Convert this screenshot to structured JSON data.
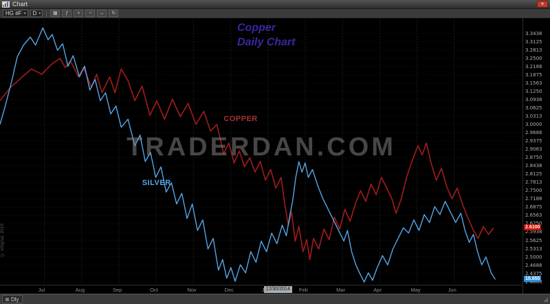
{
  "window": {
    "title": "Chart"
  },
  "titlebar": {
    "close_glyph": "×"
  },
  "toolbar": {
    "symbol": "HG #F",
    "interval": "D",
    "dropdown_glyph": "▾",
    "icons": [
      {
        "name": "chart-type",
        "glyph": "▦"
      },
      {
        "name": "indicators",
        "glyph": "ƒ"
      },
      {
        "name": "crosshair",
        "glyph": "+"
      },
      {
        "name": "zoom-out",
        "glyph": "−"
      },
      {
        "name": "pan",
        "glyph": "↔"
      },
      {
        "name": "refresh",
        "glyph": "↻"
      }
    ]
  },
  "chart_data": {
    "type": "line",
    "title": "Copper Daily Chart",
    "annotation": {
      "line1": "Copper",
      "line2": "Daily Chart",
      "color": "#3a26a0"
    },
    "watermark": "TRADERDAN.COM",
    "grid": "dotted",
    "legend_position": "inline-labels",
    "x_tick_labels": [
      "Jul",
      "Aug",
      "Sep",
      "Oct",
      "Nov",
      "Dec",
      "Jan",
      "Feb",
      "Mar",
      "Apr",
      "May",
      "Jun"
    ],
    "x_tick_frac_start": 0.085,
    "x_tick_frac_step": 0.0713,
    "y_tick_labels": [
      "3.3438",
      "3.3125",
      "3.2813",
      "3.2500",
      "3.2188",
      "3.1875",
      "3.1563",
      "3.1250",
      "3.0938",
      "3.0625",
      "3.0313",
      "3.0000",
      "2.9688",
      "2.9375",
      "2.9063",
      "2.8750",
      "2.8438",
      "2.8125",
      "2.7813",
      "2.7500",
      "2.7188",
      "2.6875",
      "2.6563",
      "2.6250",
      "2.5938",
      "2.5625",
      "2.5313",
      "2.5000",
      "2.4688",
      "2.4375",
      "2.4063"
    ],
    "y_tick_value_start": 3.34375,
    "y_tick_step": 0.03125,
    "ylim": [
      2.395,
      3.4
    ],
    "x_axis_tag": {
      "text": "12/30/2014",
      "x_frac": 0.505
    },
    "series": [
      {
        "name": "COPPER",
        "color": "#9b1b1b",
        "label_color": "#a83232",
        "label_x_frac": 0.428,
        "label_price": 3.02,
        "last_price": 2.61,
        "last_label": "2.6100",
        "last_label_bg": "#c51100",
        "points": [
          [
            0.0,
            3.09
          ],
          [
            0.02,
            3.14
          ],
          [
            0.04,
            3.175
          ],
          [
            0.06,
            3.21
          ],
          [
            0.08,
            3.19
          ],
          [
            0.1,
            3.23
          ],
          [
            0.115,
            3.25
          ],
          [
            0.125,
            3.215
          ],
          [
            0.135,
            3.24
          ],
          [
            0.15,
            3.18
          ],
          [
            0.16,
            3.215
          ],
          [
            0.175,
            3.14
          ],
          [
            0.185,
            3.19
          ],
          [
            0.195,
            3.12
          ],
          [
            0.21,
            3.18
          ],
          [
            0.22,
            3.12
          ],
          [
            0.232,
            3.21
          ],
          [
            0.245,
            3.165
          ],
          [
            0.258,
            3.09
          ],
          [
            0.272,
            3.145
          ],
          [
            0.287,
            3.035
          ],
          [
            0.3,
            3.09
          ],
          [
            0.315,
            3.02
          ],
          [
            0.33,
            3.095
          ],
          [
            0.345,
            3.03
          ],
          [
            0.36,
            3.08
          ],
          [
            0.375,
            3.0
          ],
          [
            0.39,
            3.05
          ],
          [
            0.403,
            2.975
          ],
          [
            0.415,
            3.0
          ],
          [
            0.428,
            2.89
          ],
          [
            0.438,
            2.93
          ],
          [
            0.448,
            2.855
          ],
          [
            0.458,
            2.9
          ],
          [
            0.468,
            2.84
          ],
          [
            0.478,
            2.875
          ],
          [
            0.488,
            2.82
          ],
          [
            0.498,
            2.86
          ],
          [
            0.508,
            2.79
          ],
          [
            0.518,
            2.83
          ],
          [
            0.528,
            2.76
          ],
          [
            0.538,
            2.8
          ],
          [
            0.545,
            2.7
          ],
          [
            0.552,
            2.62
          ],
          [
            0.558,
            2.67
          ],
          [
            0.565,
            2.56
          ],
          [
            0.572,
            2.615
          ],
          [
            0.58,
            2.52
          ],
          [
            0.587,
            2.565
          ],
          [
            0.593,
            2.49
          ],
          [
            0.6,
            2.57
          ],
          [
            0.61,
            2.53
          ],
          [
            0.62,
            2.605
          ],
          [
            0.63,
            2.565
          ],
          [
            0.64,
            2.65
          ],
          [
            0.65,
            2.605
          ],
          [
            0.66,
            2.68
          ],
          [
            0.67,
            2.635
          ],
          [
            0.68,
            2.7
          ],
          [
            0.69,
            2.75
          ],
          [
            0.7,
            2.71
          ],
          [
            0.71,
            2.775
          ],
          [
            0.72,
            2.735
          ],
          [
            0.73,
            2.8
          ],
          [
            0.74,
            2.76
          ],
          [
            0.75,
            2.72
          ],
          [
            0.758,
            2.665
          ],
          [
            0.768,
            2.72
          ],
          [
            0.778,
            2.8
          ],
          [
            0.79,
            2.87
          ],
          [
            0.8,
            2.92
          ],
          [
            0.808,
            2.885
          ],
          [
            0.816,
            2.93
          ],
          [
            0.825,
            2.855
          ],
          [
            0.835,
            2.79
          ],
          [
            0.845,
            2.835
          ],
          [
            0.855,
            2.765
          ],
          [
            0.865,
            2.72
          ],
          [
            0.875,
            2.76
          ],
          [
            0.885,
            2.7
          ],
          [
            0.895,
            2.65
          ],
          [
            0.905,
            2.605
          ],
          [
            0.915,
            2.57
          ],
          [
            0.925,
            2.615
          ],
          [
            0.935,
            2.585
          ],
          [
            0.945,
            2.61
          ]
        ]
      },
      {
        "name": "SILVER",
        "color": "#55a8ea",
        "label_color": "#55a8ea",
        "label_x_frac": 0.272,
        "label_price": 2.78,
        "last_price": 2.415,
        "last_label": "15.655",
        "last_label_bg": "#2f8fd6",
        "points": [
          [
            0.0,
            3.0
          ],
          [
            0.01,
            3.07
          ],
          [
            0.022,
            3.16
          ],
          [
            0.033,
            3.255
          ],
          [
            0.045,
            3.3
          ],
          [
            0.058,
            3.33
          ],
          [
            0.068,
            3.3
          ],
          [
            0.082,
            3.365
          ],
          [
            0.092,
            3.32
          ],
          [
            0.1,
            3.34
          ],
          [
            0.11,
            3.28
          ],
          [
            0.12,
            3.305
          ],
          [
            0.13,
            3.22
          ],
          [
            0.14,
            3.26
          ],
          [
            0.152,
            3.18
          ],
          [
            0.162,
            3.22
          ],
          [
            0.172,
            3.13
          ],
          [
            0.182,
            3.17
          ],
          [
            0.192,
            3.09
          ],
          [
            0.202,
            3.12
          ],
          [
            0.212,
            3.04
          ],
          [
            0.222,
            3.07
          ],
          [
            0.232,
            2.99
          ],
          [
            0.245,
            3.02
          ],
          [
            0.258,
            2.92
          ],
          [
            0.268,
            2.96
          ],
          [
            0.278,
            2.86
          ],
          [
            0.288,
            2.895
          ],
          [
            0.298,
            2.8
          ],
          [
            0.308,
            2.84
          ],
          [
            0.318,
            2.745
          ],
          [
            0.328,
            2.78
          ],
          [
            0.338,
            2.7
          ],
          [
            0.348,
            2.74
          ],
          [
            0.358,
            2.645
          ],
          [
            0.368,
            2.7
          ],
          [
            0.378,
            2.6
          ],
          [
            0.388,
            2.64
          ],
          [
            0.398,
            2.53
          ],
          [
            0.408,
            2.57
          ],
          [
            0.418,
            2.45
          ],
          [
            0.426,
            2.49
          ],
          [
            0.434,
            2.42
          ],
          [
            0.442,
            2.46
          ],
          [
            0.45,
            2.408
          ],
          [
            0.46,
            2.47
          ],
          [
            0.47,
            2.44
          ],
          [
            0.48,
            2.52
          ],
          [
            0.49,
            2.48
          ],
          [
            0.5,
            2.56
          ],
          [
            0.51,
            2.52
          ],
          [
            0.52,
            2.59
          ],
          [
            0.53,
            2.55
          ],
          [
            0.54,
            2.62
          ],
          [
            0.548,
            2.58
          ],
          [
            0.555,
            2.66
          ],
          [
            0.56,
            2.71
          ],
          [
            0.566,
            2.8
          ],
          [
            0.572,
            2.86
          ],
          [
            0.578,
            2.82
          ],
          [
            0.584,
            2.855
          ],
          [
            0.59,
            2.8
          ],
          [
            0.598,
            2.83
          ],
          [
            0.608,
            2.77
          ],
          [
            0.618,
            2.72
          ],
          [
            0.628,
            2.68
          ],
          [
            0.638,
            2.64
          ],
          [
            0.648,
            2.6
          ],
          [
            0.658,
            2.56
          ],
          [
            0.665,
            2.6
          ],
          [
            0.673,
            2.52
          ],
          [
            0.681,
            2.47
          ],
          [
            0.688,
            2.44
          ],
          [
            0.697,
            2.405
          ],
          [
            0.705,
            2.44
          ],
          [
            0.713,
            2.412
          ],
          [
            0.722,
            2.46
          ],
          [
            0.732,
            2.505
          ],
          [
            0.742,
            2.47
          ],
          [
            0.752,
            2.53
          ],
          [
            0.762,
            2.57
          ],
          [
            0.772,
            2.61
          ],
          [
            0.782,
            2.59
          ],
          [
            0.792,
            2.64
          ],
          [
            0.802,
            2.6
          ],
          [
            0.812,
            2.66
          ],
          [
            0.822,
            2.63
          ],
          [
            0.832,
            2.69
          ],
          [
            0.842,
            2.66
          ],
          [
            0.852,
            2.71
          ],
          [
            0.862,
            2.67
          ],
          [
            0.872,
            2.63
          ],
          [
            0.882,
            2.665
          ],
          [
            0.89,
            2.6
          ],
          [
            0.898,
            2.555
          ],
          [
            0.906,
            2.585
          ],
          [
            0.914,
            2.52
          ],
          [
            0.922,
            2.47
          ],
          [
            0.93,
            2.5
          ],
          [
            0.94,
            2.44
          ],
          [
            0.948,
            2.415
          ]
        ]
      }
    ]
  },
  "footer": {
    "tab_label": "Dly",
    "copyright": "© eSignal, 2015",
    "resize_glyph": "◢"
  }
}
